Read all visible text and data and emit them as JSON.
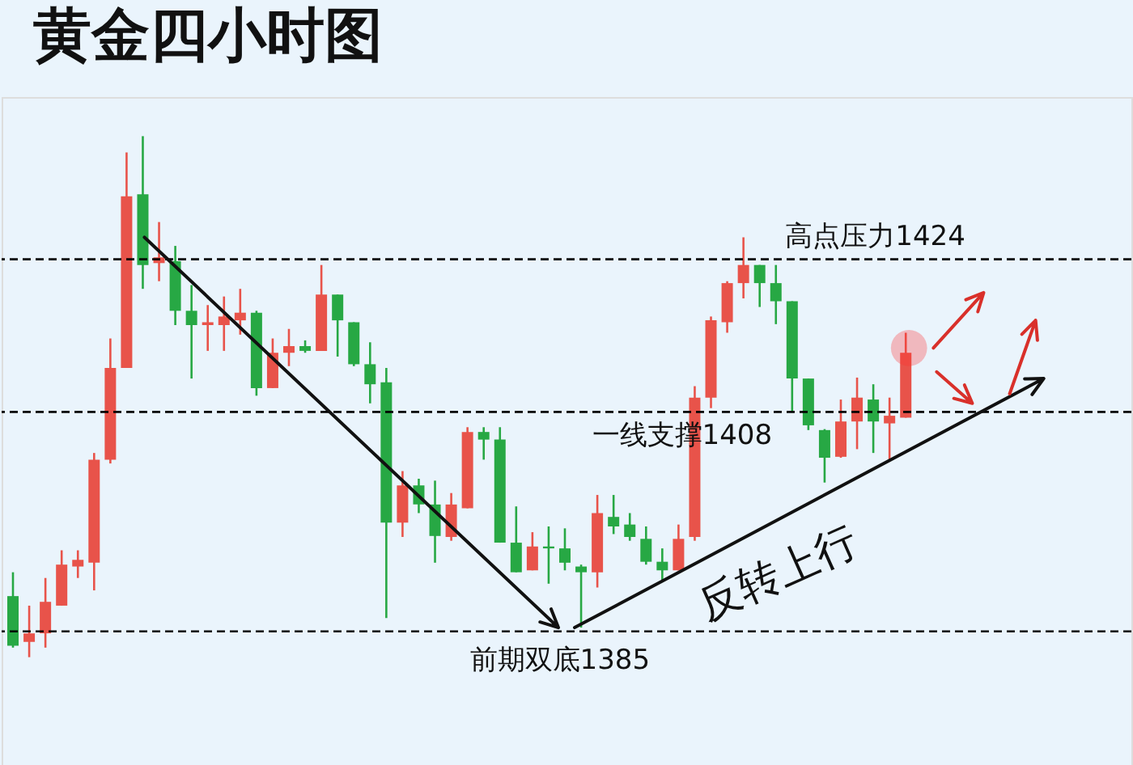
{
  "chart_data": {
    "type": "candlestick",
    "title": "黄金四小时图",
    "categories": [
      null,
      null,
      null,
      null,
      null,
      null,
      null,
      null,
      null,
      null,
      null,
      null,
      null,
      null,
      null,
      null,
      null,
      null,
      null,
      null,
      null,
      null,
      null,
      null,
      null,
      null,
      null,
      null,
      null,
      null,
      null,
      null,
      null,
      null,
      null,
      null,
      null,
      null,
      null,
      null,
      null,
      null,
      null,
      null,
      null,
      null,
      null,
      null,
      null,
      null,
      null,
      null,
      null,
      null,
      null,
      null
    ],
    "ohlc": [
      [
        1388.7,
        1391.2,
        1383.3,
        1383.5
      ],
      [
        1383.9,
        1387.7,
        1382.3,
        1384.8
      ],
      [
        1384.8,
        1390.6,
        1383.3,
        1388.1
      ],
      [
        1387.7,
        1393.5,
        1387.7,
        1392.0
      ],
      [
        1391.8,
        1393.5,
        1390.6,
        1392.5
      ],
      [
        1392.2,
        1403.7,
        1389.3,
        1403.0
      ],
      [
        1403.0,
        1415.7,
        1402.6,
        1412.6
      ],
      [
        1412.6,
        1435.2,
        1412.6,
        1430.6
      ],
      [
        1430.8,
        1436.9,
        1420.9,
        1423.4
      ],
      [
        1423.6,
        1427.9,
        1421.7,
        1424.2
      ],
      [
        1423.8,
        1425.4,
        1417.1,
        1418.6
      ],
      [
        1418.6,
        1421.3,
        1411.5,
        1417.1
      ],
      [
        1417.1,
        1419.2,
        1414.4,
        1417.4
      ],
      [
        1417.1,
        1420.1,
        1414.4,
        1418.0
      ],
      [
        1417.6,
        1420.9,
        1416.1,
        1418.4
      ],
      [
        1418.4,
        1418.6,
        1409.7,
        1410.5
      ],
      [
        1410.5,
        1415.7,
        1410.5,
        1414.2
      ],
      [
        1414.2,
        1416.7,
        1412.8,
        1414.9
      ],
      [
        1414.9,
        1415.5,
        1414.2,
        1414.4
      ],
      [
        1414.4,
        1423.4,
        1414.4,
        1420.3
      ],
      [
        1420.3,
        1420.3,
        1413.8,
        1417.6
      ],
      [
        1417.4,
        1417.4,
        1412.8,
        1413.0
      ],
      [
        1413.0,
        1415.3,
        1408.9,
        1410.9
      ],
      [
        1411.1,
        1412.6,
        1386.4,
        1396.4
      ],
      [
        1396.4,
        1401.8,
        1394.9,
        1400.3
      ],
      [
        1400.3,
        1401.0,
        1397.4,
        1398.3
      ],
      [
        1398.3,
        1400.8,
        1392.2,
        1395.0
      ],
      [
        1394.9,
        1399.5,
        1394.5,
        1398.3
      ],
      [
        1397.9,
        1406.4,
        1397.9,
        1405.9
      ],
      [
        1405.9,
        1406.4,
        1403.0,
        1405.1
      ],
      [
        1405.1,
        1406.4,
        1394.3,
        1394.3
      ],
      [
        1394.3,
        1398.1,
        1391.2,
        1391.2
      ],
      [
        1391.4,
        1395.4,
        1391.4,
        1393.9
      ],
      [
        1393.9,
        1396.0,
        1390.0,
        1393.7
      ],
      [
        1393.7,
        1395.8,
        1391.4,
        1392.2
      ],
      [
        1391.8,
        1392.0,
        1385.4,
        1391.2
      ],
      [
        1391.2,
        1399.3,
        1389.6,
        1397.4
      ],
      [
        1397.0,
        1399.3,
        1395.2,
        1396.0
      ],
      [
        1396.2,
        1397.4,
        1394.5,
        1394.9
      ],
      [
        1394.7,
        1396.0,
        1392.0,
        1392.3
      ],
      [
        1392.3,
        1393.7,
        1390.2,
        1391.4
      ],
      [
        1391.4,
        1396.2,
        1391.4,
        1394.7
      ],
      [
        1394.9,
        1410.7,
        1394.5,
        1409.5
      ],
      [
        1409.5,
        1418.0,
        1408.4,
        1417.6
      ],
      [
        1417.4,
        1421.7,
        1416.3,
        1421.5
      ],
      [
        1421.5,
        1426.3,
        1419.9,
        1423.4
      ],
      [
        1423.4,
        1423.4,
        1419.0,
        1421.5
      ],
      [
        1421.5,
        1423.4,
        1417.2,
        1419.6
      ],
      [
        1419.6,
        1419.6,
        1408.0,
        1411.5
      ],
      [
        1411.5,
        1411.5,
        1406.1,
        1406.6
      ],
      [
        1406.1,
        1406.2,
        1400.6,
        1403.2
      ],
      [
        1403.3,
        1409.3,
        1403.2,
        1407.0
      ],
      [
        1407.0,
        1411.6,
        1404.1,
        1409.5
      ],
      [
        1409.3,
        1410.9,
        1403.7,
        1407.0
      ],
      [
        1406.8,
        1409.5,
        1402.8,
        1407.6
      ],
      [
        1407.4,
        1416.3,
        1407.4,
        1414.2
      ]
    ],
    "colors": [
      "#27a844",
      "#e8534a",
      "#e8534a",
      "#e8534a",
      "#e8534a",
      "#e8534a",
      "#e8534a",
      "#e8534a",
      "#27a844",
      "#e8534a",
      "#27a844",
      "#27a844",
      "#e8534a",
      "#e8534a",
      "#e8534a",
      "#27a844",
      "#e8534a",
      "#e8534a",
      "#27a844",
      "#e8534a",
      "#27a844",
      "#27a844",
      "#27a844",
      "#27a844",
      "#e8534a",
      "#27a844",
      "#27a844",
      "#e8534a",
      "#e8534a",
      "#27a844",
      "#27a844",
      "#27a844",
      "#e8534a",
      "#27a844",
      "#27a844",
      "#27a844",
      "#e8534a",
      "#27a844",
      "#27a844",
      "#27a844",
      "#27a844",
      "#e8534a",
      "#e8534a",
      "#e8534a",
      "#e8534a",
      "#e8534a",
      "#27a844",
      "#27a844",
      "#27a844",
      "#27a844",
      "#27a844",
      "#e8534a",
      "#e8534a",
      "#27a844",
      "#e8534a",
      "#e8534a"
    ],
    "ylim": [
      1371,
      1441
    ],
    "tick_labels": false,
    "grid": false,
    "ref_lines": [
      {
        "axis": "y",
        "value": 1424,
        "label": "高点压力1424",
        "line_style": "dashed",
        "color": "#000000"
      },
      {
        "axis": "y",
        "value": 1408,
        "label": "一线支撑1408",
        "line_style": "dashed",
        "color": "#000000"
      },
      {
        "axis": "y",
        "value": 1385,
        "label": "前期双底1385",
        "line_style": "dashed",
        "color": "#000000"
      }
    ],
    "annotations": [
      "反转上行"
    ]
  }
}
